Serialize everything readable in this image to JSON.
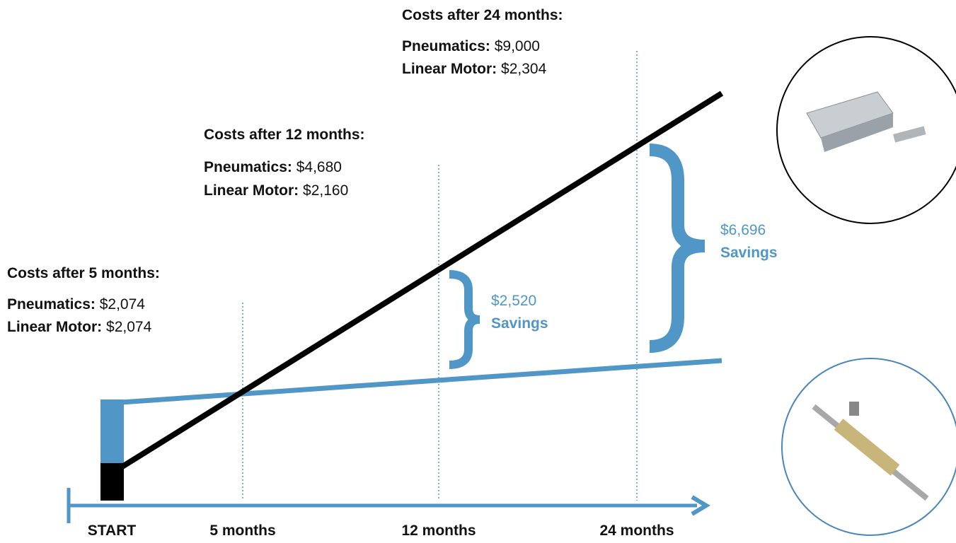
{
  "milestones": [
    {
      "label": "START"
    },
    {
      "label": "5 months"
    },
    {
      "label": "12 months"
    },
    {
      "label": "24 months"
    }
  ],
  "callouts": [
    {
      "heading": "Costs after 5 months:",
      "rows": [
        {
          "name": "Pneumatics:",
          "value": "$2,074"
        },
        {
          "name": "Linear Motor:",
          "value": "$2,074"
        }
      ]
    },
    {
      "heading": "Costs after 12 months:",
      "rows": [
        {
          "name": "Pneumatics:",
          "value": "$4,680"
        },
        {
          "name": "Linear Motor:",
          "value": "$2,160"
        }
      ]
    },
    {
      "heading": "Costs after 24 months:",
      "rows": [
        {
          "name": "Pneumatics:",
          "value": "$9,000"
        },
        {
          "name": "Linear Motor:",
          "value": "$2,304"
        }
      ]
    }
  ],
  "savings": [
    {
      "amount": "$2,520",
      "label": "Savings"
    },
    {
      "amount": "$6,696",
      "label": "Savings"
    }
  ]
}
